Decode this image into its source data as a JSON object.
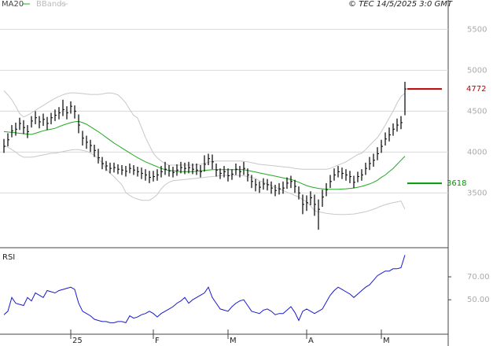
{
  "chart_data": [
    {
      "type": "ohlc",
      "title": "© TEC 14/5/2025 3:0 GMT",
      "color": "#000000",
      "ylim": [
        2830,
        5860
      ],
      "yticks": [
        3500,
        4000,
        4500,
        5000,
        5500
      ],
      "grid": true,
      "close": [
        4070,
        4150,
        4260,
        4280,
        4350,
        4300,
        4250,
        4380,
        4420,
        4370,
        4400,
        4350,
        4420,
        4450,
        4480,
        4520,
        4480,
        4560,
        4500,
        4330,
        4170,
        4120,
        4080,
        4020,
        3930,
        3860,
        3830,
        3800,
        3810,
        3790,
        3780,
        3765,
        3800,
        3780,
        3760,
        3740,
        3720,
        3690,
        3700,
        3720,
        3760,
        3790,
        3770,
        3750,
        3780,
        3810,
        3800,
        3810,
        3790,
        3780,
        3760,
        3850,
        3920,
        3880,
        3780,
        3740,
        3760,
        3710,
        3730,
        3790,
        3760,
        3800,
        3720,
        3640,
        3600,
        3570,
        3610,
        3600,
        3560,
        3530,
        3550,
        3560,
        3620,
        3640,
        3580,
        3500,
        3360,
        3380,
        3440,
        3360,
        3300,
        3450,
        3540,
        3640,
        3720,
        3760,
        3740,
        3720,
        3700,
        3630,
        3700,
        3720,
        3800,
        3860,
        3900,
        3980,
        4070,
        4160,
        4210,
        4280,
        4330,
        4360,
        4772
      ],
      "high": [
        4160,
        4230,
        4330,
        4360,
        4420,
        4390,
        4330,
        4440,
        4500,
        4440,
        4470,
        4430,
        4480,
        4520,
        4550,
        4640,
        4560,
        4620,
        4570,
        4460,
        4260,
        4200,
        4150,
        4090,
        4040,
        3940,
        3890,
        3870,
        3870,
        3850,
        3840,
        3830,
        3860,
        3840,
        3820,
        3810,
        3790,
        3770,
        3770,
        3790,
        3830,
        3880,
        3840,
        3820,
        3850,
        3880,
        3870,
        3880,
        3860,
        3860,
        3840,
        3960,
        3980,
        3970,
        3860,
        3800,
        3830,
        3800,
        3790,
        3860,
        3830,
        3880,
        3800,
        3720,
        3670,
        3640,
        3680,
        3670,
        3640,
        3600,
        3620,
        3640,
        3690,
        3710,
        3660,
        3580,
        3480,
        3470,
        3520,
        3480,
        3420,
        3540,
        3620,
        3720,
        3800,
        3830,
        3810,
        3790,
        3770,
        3710,
        3760,
        3790,
        3870,
        3940,
        3980,
        4060,
        4150,
        4240,
        4300,
        4350,
        4410,
        4440,
        4860
      ],
      "low": [
        3990,
        4070,
        4180,
        4200,
        4270,
        4220,
        4170,
        4300,
        4340,
        4290,
        4320,
        4270,
        4340,
        4380,
        4400,
        4440,
        4400,
        4470,
        4410,
        4230,
        4080,
        4040,
        4000,
        3940,
        3860,
        3790,
        3770,
        3740,
        3750,
        3730,
        3720,
        3700,
        3740,
        3720,
        3700,
        3670,
        3650,
        3620,
        3640,
        3650,
        3690,
        3720,
        3700,
        3690,
        3710,
        3740,
        3730,
        3740,
        3730,
        3720,
        3690,
        3760,
        3840,
        3790,
        3700,
        3670,
        3690,
        3640,
        3660,
        3720,
        3690,
        3720,
        3640,
        3560,
        3520,
        3500,
        3540,
        3530,
        3490,
        3460,
        3480,
        3490,
        3550,
        3560,
        3500,
        3420,
        3240,
        3280,
        3350,
        3220,
        3050,
        3330,
        3460,
        3560,
        3650,
        3690,
        3670,
        3650,
        3620,
        3560,
        3630,
        3650,
        3720,
        3780,
        3820,
        3900,
        3990,
        4080,
        4130,
        4200,
        4250,
        4280,
        4450
      ],
      "series": [
        {
          "name": "MA20",
          "color": "#22aa22",
          "values": [
            4250,
            4245,
            4240,
            4235,
            4230,
            4225,
            4220,
            4215,
            4230,
            4245,
            4260,
            4270,
            4280,
            4290,
            4310,
            4330,
            4345,
            4360,
            4370,
            4375,
            4360,
            4340,
            4310,
            4280,
            4250,
            4215,
            4180,
            4145,
            4110,
            4080,
            4050,
            4020,
            3990,
            3960,
            3930,
            3905,
            3880,
            3860,
            3840,
            3820,
            3800,
            3785,
            3775,
            3770,
            3765,
            3760,
            3760,
            3760,
            3760,
            3765,
            3770,
            3775,
            3780,
            3785,
            3785,
            3785,
            3785,
            3785,
            3785,
            3785,
            3785,
            3785,
            3775,
            3765,
            3755,
            3745,
            3735,
            3725,
            3715,
            3705,
            3695,
            3685,
            3675,
            3665,
            3650,
            3630,
            3610,
            3590,
            3575,
            3565,
            3555,
            3550,
            3545,
            3545,
            3545,
            3545,
            3548,
            3550,
            3555,
            3560,
            3570,
            3580,
            3595,
            3610,
            3630,
            3655,
            3690,
            3720,
            3760,
            3800,
            3850,
            3900,
            3950
          ]
        },
        {
          "name": "BBands",
          "color": "#c8c8c8",
          "upper": [
            4750,
            4700,
            4640,
            4560,
            4470,
            4430,
            4450,
            4480,
            4510,
            4540,
            4570,
            4600,
            4630,
            4657,
            4680,
            4700,
            4715,
            4724,
            4724,
            4720,
            4715,
            4710,
            4705,
            4705,
            4705,
            4710,
            4720,
            4724,
            4715,
            4700,
            4657,
            4600,
            4520,
            4450,
            4417,
            4300,
            4180,
            4080,
            3985,
            3930,
            3890,
            3860,
            3840,
            3840,
            3840,
            3840,
            3840,
            3840,
            3840,
            3845,
            3850,
            3860,
            3875,
            3885,
            3890,
            3890,
            3890,
            3890,
            3890,
            3890,
            3890,
            3885,
            3880,
            3870,
            3860,
            3850,
            3845,
            3840,
            3835,
            3830,
            3825,
            3820,
            3815,
            3810,
            3800,
            3795,
            3790,
            3790,
            3790,
            3790,
            3790,
            3790,
            3790,
            3800,
            3820,
            3840,
            3860,
            3880,
            3910,
            3940,
            3970,
            3985,
            4030,
            4080,
            4130,
            4177,
            4250,
            4330,
            4417,
            4500,
            4600,
            4680,
            4720
          ],
          "lower": [
            4080,
            4060,
            4030,
            4000,
            3960,
            3937,
            3937,
            3937,
            3945,
            3955,
            3965,
            3975,
            3985,
            3985,
            3995,
            4005,
            4015,
            4025,
            4030,
            4030,
            4020,
            4010,
            3990,
            3960,
            3920,
            3870,
            3800,
            3740,
            3700,
            3650,
            3600,
            3505,
            3470,
            3440,
            3425,
            3410,
            3410,
            3410,
            3440,
            3480,
            3550,
            3600,
            3630,
            3650,
            3655,
            3660,
            3665,
            3670,
            3675,
            3680,
            3685,
            3690,
            3697,
            3700,
            3705,
            3710,
            3715,
            3715,
            3715,
            3715,
            3715,
            3710,
            3700,
            3690,
            3675,
            3650,
            3630,
            3610,
            3590,
            3570,
            3550,
            3530,
            3510,
            3490,
            3470,
            3450,
            3420,
            3390,
            3340,
            3284,
            3270,
            3260,
            3250,
            3245,
            3240,
            3237,
            3237,
            3237,
            3240,
            3243,
            3250,
            3260,
            3270,
            3285,
            3300,
            3320,
            3340,
            3355,
            3370,
            3380,
            3390,
            3400,
            3300
          ]
        }
      ],
      "markers": [
        {
          "value": 4772,
          "color": "#c00000"
        },
        {
          "value": 3618,
          "color": "#009900"
        }
      ]
    },
    {
      "type": "line",
      "title": "RSI",
      "color": "#1a1acc",
      "ylim": [
        20,
        94
      ],
      "yticks": [
        {
          "value": 50,
          "label": "50.00"
        },
        {
          "value": 70,
          "label": "70.00"
        }
      ],
      "categories": [
        null,
        null,
        null,
        null,
        null,
        null,
        null,
        null,
        null,
        null,
        null,
        null,
        null,
        null,
        null,
        null,
        null,
        "25",
        null,
        null,
        null,
        null,
        null,
        null,
        null,
        null,
        null,
        null,
        null,
        null,
        null,
        null,
        null,
        null,
        null,
        null,
        null,
        null,
        "F",
        null,
        null,
        null,
        null,
        null,
        null,
        null,
        null,
        null,
        null,
        null,
        null,
        null,
        null,
        null,
        null,
        null,
        null,
        "M",
        null,
        null,
        null,
        null,
        null,
        null,
        null,
        null,
        null,
        null,
        null,
        null,
        null,
        null,
        null,
        null,
        null,
        null,
        null,
        "A",
        null,
        null,
        null,
        null,
        null,
        null,
        null,
        null,
        null,
        null,
        null,
        null,
        null,
        null,
        null,
        null,
        null,
        null,
        "M",
        null,
        null,
        null,
        null,
        null,
        null
      ],
      "values": [
        37,
        40,
        52,
        47,
        46,
        45,
        52,
        49,
        56,
        54,
        52,
        58,
        57,
        56,
        58,
        59,
        60,
        61,
        59,
        47,
        40,
        38,
        36,
        33,
        32,
        31,
        31,
        30,
        30,
        31,
        31,
        30,
        36,
        34,
        35,
        37,
        38,
        40,
        38,
        35,
        38,
        40,
        42,
        44,
        47,
        49,
        52,
        47,
        50,
        52,
        54,
        56,
        61,
        52,
        47,
        42,
        41,
        40,
        44,
        47,
        49,
        50,
        45,
        40,
        39,
        38,
        41,
        42,
        40,
        37,
        38,
        38,
        41,
        44,
        39,
        32,
        40,
        42,
        40,
        38,
        40,
        42,
        48,
        54,
        58,
        61,
        59,
        57,
        55,
        52,
        55,
        58,
        61,
        63,
        67,
        71,
        73,
        75,
        75,
        77,
        77,
        78,
        89
      ]
    }
  ]
}
